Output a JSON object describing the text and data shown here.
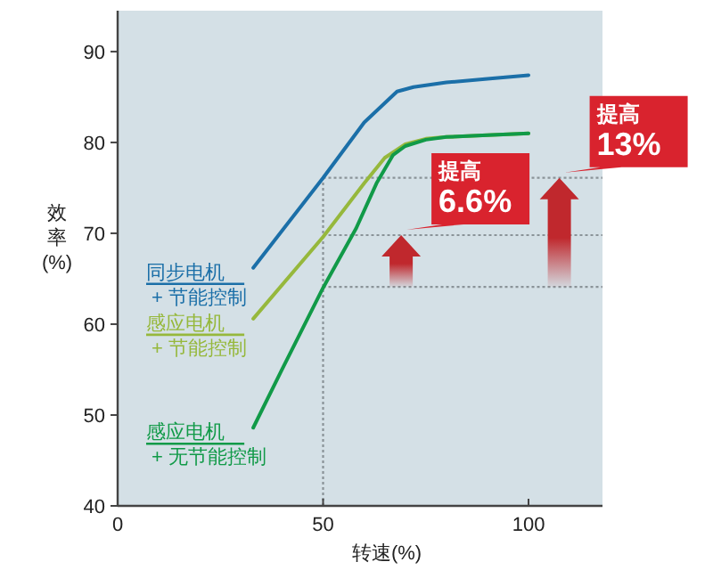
{
  "chart_data": {
    "type": "line",
    "xlabel": "转速(%)",
    "ylabel": "效率(%)",
    "xlim": [
      0,
      118
    ],
    "xticks": [
      0,
      50,
      100
    ],
    "ylim": [
      40,
      94.5
    ],
    "yticks": [
      40,
      50,
      60,
      70,
      80,
      90
    ],
    "grid": false,
    "series": [
      {
        "name": "同步电机\n+ 节能控制",
        "color": "#1b6fa8",
        "x": [
          33,
          50,
          60,
          68,
          72,
          80,
          90,
          100
        ],
        "values": [
          66.2,
          76.1,
          82.2,
          85.6,
          86.1,
          86.6,
          87.0,
          87.4
        ]
      },
      {
        "name": "感应电机\n+ 节能控制",
        "color": "#96b83c",
        "x": [
          33,
          50,
          60,
          65,
          70,
          75,
          80,
          90,
          100
        ],
        "values": [
          60.6,
          69.6,
          75.5,
          78.3,
          79.8,
          80.4,
          80.6,
          80.8,
          81.0
        ]
      },
      {
        "name": "感应电机\n+ 无节能控制",
        "color": "#119a48",
        "x": [
          33,
          40,
          50,
          58,
          63,
          67,
          70,
          75,
          80,
          90,
          100
        ],
        "values": [
          48.6,
          55,
          64,
          70.5,
          75.5,
          78.6,
          79.6,
          80.3,
          80.6,
          80.8,
          81.0
        ]
      }
    ],
    "ref_lines": [
      {
        "axis": "x",
        "value": 50,
        "color": "#8a9398",
        "line_style": "dotted"
      },
      {
        "axis": "y",
        "value": 76.1,
        "color": "#8a9398",
        "line_style": "dotted"
      },
      {
        "axis": "y",
        "value": 69.8,
        "color": "#8a9398",
        "line_style": "dotted"
      },
      {
        "axis": "y",
        "value": 64.1,
        "color": "#8a9398",
        "line_style": "dotted"
      }
    ],
    "annotations": [
      {
        "text": "提高\n6.6%",
        "x": 69,
        "y": 69.8
      },
      {
        "text": "提高\n13%",
        "x": 107.5,
        "y": 76.1
      }
    ]
  }
}
